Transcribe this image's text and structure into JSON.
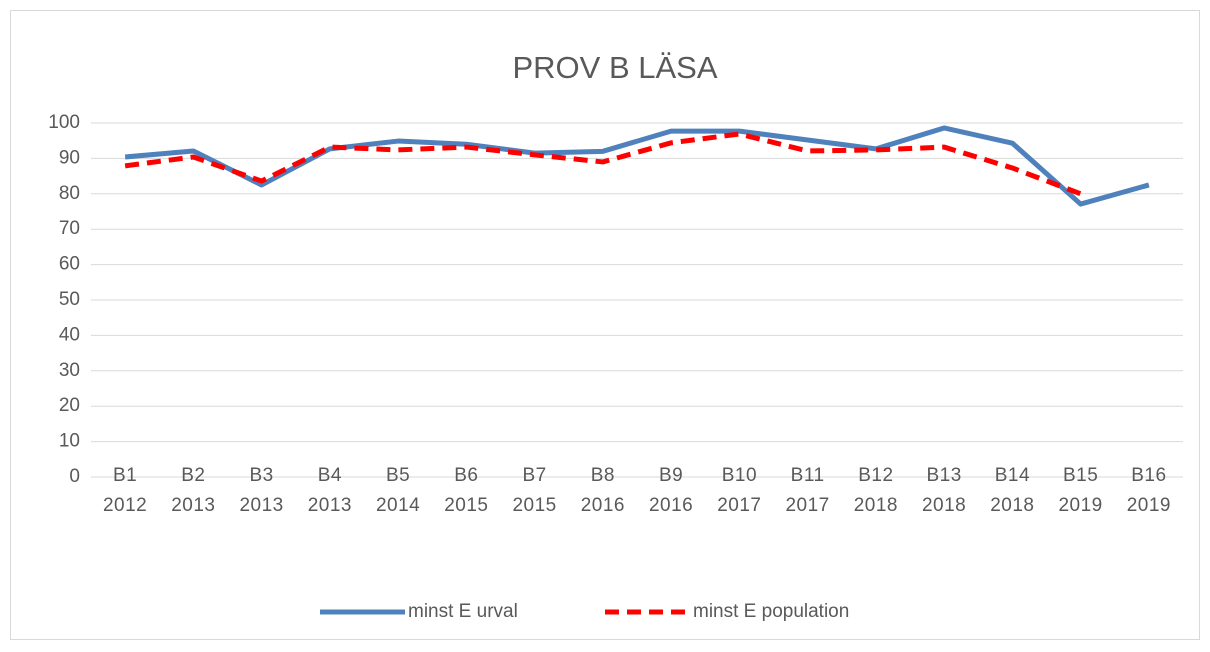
{
  "chart_data": {
    "type": "line",
    "title": "PROV B LÄSA",
    "categories": [
      "B1 2012",
      "B2 2013",
      "B3 2013",
      "B4 2013",
      "B5 2014",
      "B6 2015",
      "B7 2015",
      "B8 2016",
      "B9 2016",
      "B10 2017",
      "B11 2017",
      "B12 2018",
      "B13 2018",
      "B14 2018",
      "B15 2019",
      "B16 2019"
    ],
    "series": [
      {
        "name": "minst E urval",
        "color": "#4f81bd",
        "dashed": false,
        "values": [
          90.4,
          92.1,
          82.5,
          92.7,
          94.9,
          94,
          91.5,
          92,
          97.7,
          97.7,
          95.2,
          92.7,
          98.6,
          94.3,
          77.1,
          82.5
        ]
      },
      {
        "name": "minst E population",
        "color": "#ff0000",
        "dashed": true,
        "values": [
          87.9,
          90.4,
          83.6,
          93.2,
          92.4,
          93.2,
          91,
          89,
          94.4,
          96.9,
          92.1,
          92.4,
          93.2,
          87.3,
          80,
          null
        ]
      }
    ],
    "ylim": [
      0,
      100
    ],
    "yticks": [
      0,
      10,
      20,
      30,
      40,
      50,
      60,
      70,
      80,
      90,
      100
    ],
    "grid": true,
    "legend": "bottom"
  }
}
